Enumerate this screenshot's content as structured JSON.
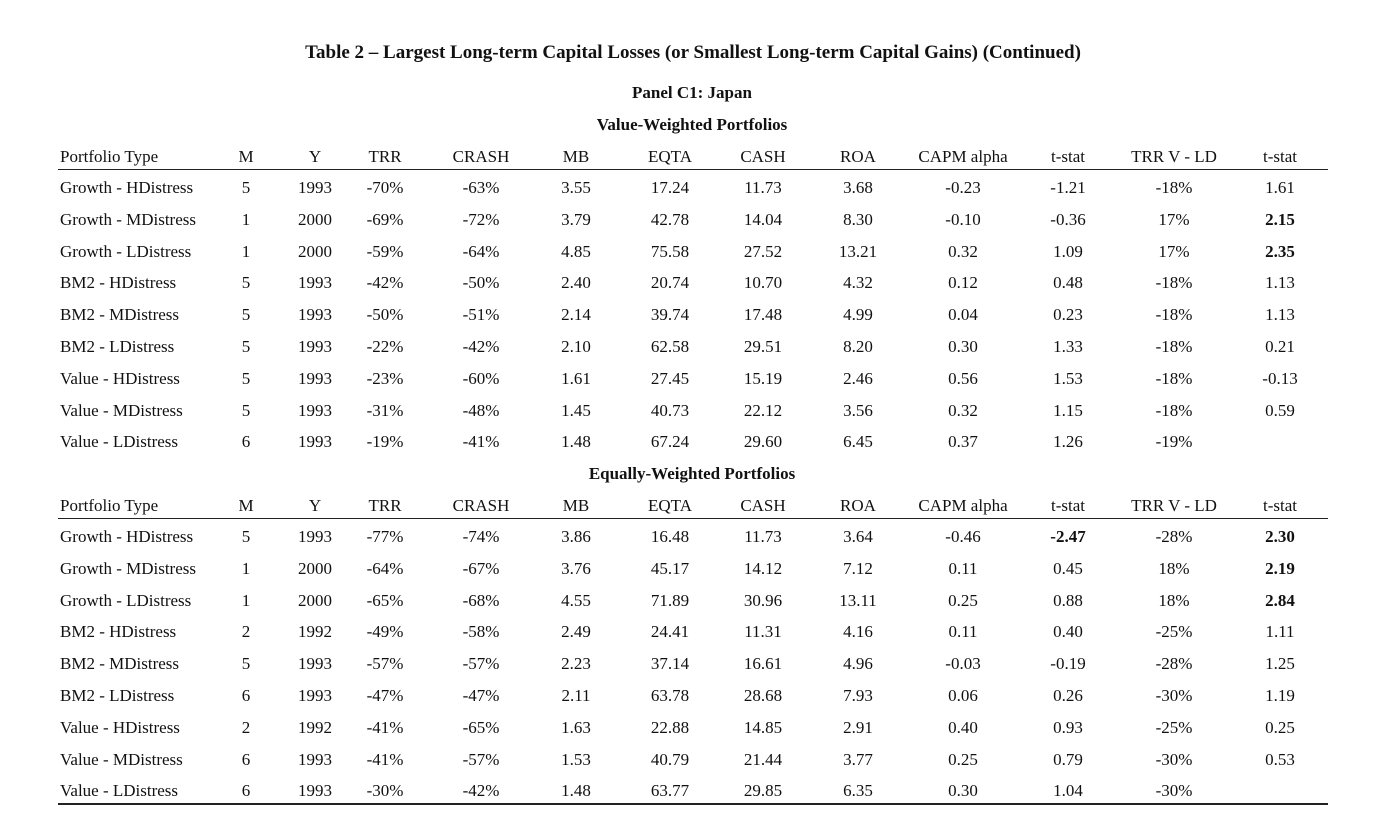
{
  "title": "Table 2 – Largest Long-term Capital Losses (or Smallest Long-term Capital Gains) (Continued)",
  "panel": "Panel C1: Japan",
  "sections": [
    {
      "heading": "Value-Weighted Portfolios",
      "columns": [
        "Portfolio Type",
        "M",
        "Y",
        "TRR",
        "CRASH",
        "MB",
        "EQTA",
        "CASH",
        "ROA",
        "CAPM alpha",
        "t-stat",
        "TRR V - LD",
        "t-stat"
      ],
      "rows": [
        [
          "Growth - HDistress",
          "5",
          "1993",
          "-70%",
          "-63%",
          "3.55",
          "17.24",
          "11.73",
          "3.68",
          "-0.23",
          "-1.21",
          "-18%",
          "1.61"
        ],
        [
          "Growth - MDistress",
          "1",
          "2000",
          "-69%",
          "-72%",
          "3.79",
          "42.78",
          "14.04",
          "8.30",
          "-0.10",
          "-0.36",
          "17%",
          "2.15"
        ],
        [
          "Growth - LDistress",
          "1",
          "2000",
          "-59%",
          "-64%",
          "4.85",
          "75.58",
          "27.52",
          "13.21",
          "0.32",
          "1.09",
          "17%",
          "2.35"
        ],
        [
          "BM2 - HDistress",
          "5",
          "1993",
          "-42%",
          "-50%",
          "2.40",
          "20.74",
          "10.70",
          "4.32",
          "0.12",
          "0.48",
          "-18%",
          "1.13"
        ],
        [
          "BM2 - MDistress",
          "5",
          "1993",
          "-50%",
          "-51%",
          "2.14",
          "39.74",
          "17.48",
          "4.99",
          "0.04",
          "0.23",
          "-18%",
          "1.13"
        ],
        [
          "BM2 - LDistress",
          "5",
          "1993",
          "-22%",
          "-42%",
          "2.10",
          "62.58",
          "29.51",
          "8.20",
          "0.30",
          "1.33",
          "-18%",
          "0.21"
        ],
        [
          "Value - HDistress",
          "5",
          "1993",
          "-23%",
          "-60%",
          "1.61",
          "27.45",
          "15.19",
          "2.46",
          "0.56",
          "1.53",
          "-18%",
          "-0.13"
        ],
        [
          "Value - MDistress",
          "5",
          "1993",
          "-31%",
          "-48%",
          "1.45",
          "40.73",
          "22.12",
          "3.56",
          "0.32",
          "1.15",
          "-18%",
          "0.59"
        ],
        [
          "Value - LDistress",
          "6",
          "1993",
          "-19%",
          "-41%",
          "1.48",
          "67.24",
          "29.60",
          "6.45",
          "0.37",
          "1.26",
          "-19%"
        ]
      ]
    },
    {
      "heading": "Equally-Weighted Portfolios",
      "columns": [
        "Portfolio Type",
        "M",
        "Y",
        "TRR",
        "CRASH",
        "MB",
        "EQTA",
        "CASH",
        "ROA",
        "CAPM alpha",
        "t-stat",
        "TRR V - LD",
        "t-stat"
      ],
      "rows": [
        [
          "Growth - HDistress",
          "5",
          "1993",
          "-77%",
          "-74%",
          "3.86",
          "16.48",
          "11.73",
          "3.64",
          "-0.46",
          "-2.47",
          "-28%",
          "2.30"
        ],
        [
          "Growth - MDistress",
          "1",
          "2000",
          "-64%",
          "-67%",
          "3.76",
          "45.17",
          "14.12",
          "7.12",
          "0.11",
          "0.45",
          "18%",
          "2.19"
        ],
        [
          "Growth - LDistress",
          "1",
          "2000",
          "-65%",
          "-68%",
          "4.55",
          "71.89",
          "30.96",
          "13.11",
          "0.25",
          "0.88",
          "18%",
          "2.84"
        ],
        [
          "BM2 - HDistress",
          "2",
          "1992",
          "-49%",
          "-58%",
          "2.49",
          "24.41",
          "11.31",
          "4.16",
          "0.11",
          "0.40",
          "-25%",
          "1.11"
        ],
        [
          "BM2 - MDistress",
          "5",
          "1993",
          "-57%",
          "-57%",
          "2.23",
          "37.14",
          "16.61",
          "4.96",
          "-0.03",
          "-0.19",
          "-28%",
          "1.25"
        ],
        [
          "BM2 - LDistress",
          "6",
          "1993",
          "-47%",
          "-47%",
          "2.11",
          "63.78",
          "28.68",
          "7.93",
          "0.06",
          "0.26",
          "-30%",
          "1.19"
        ],
        [
          "Value - HDistress",
          "2",
          "1992",
          "-41%",
          "-65%",
          "1.63",
          "22.88",
          "14.85",
          "2.91",
          "0.40",
          "0.93",
          "-25%",
          "0.25"
        ],
        [
          "Value - MDistress",
          "6",
          "1993",
          "-41%",
          "-57%",
          "1.53",
          "40.79",
          "21.44",
          "3.77",
          "0.25",
          "0.79",
          "-30%",
          "0.53"
        ],
        [
          "Value - LDistress",
          "6",
          "1993",
          "-30%",
          "-42%",
          "1.48",
          "63.77",
          "29.85",
          "6.35",
          "0.30",
          "1.04",
          "-30%"
        ]
      ]
    }
  ]
}
